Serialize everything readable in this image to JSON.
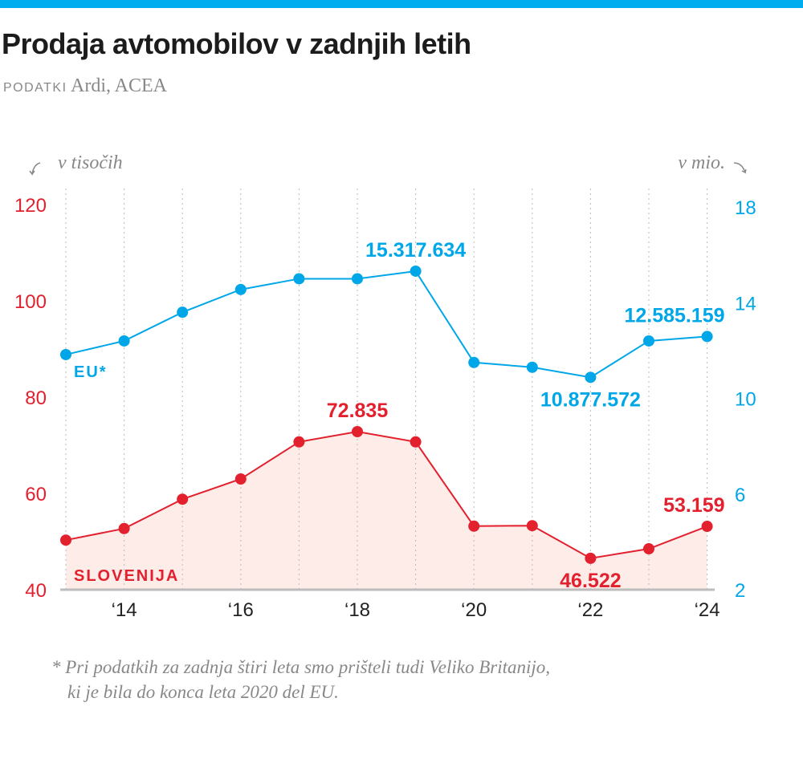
{
  "title": "Prodaja avtomobilov v zadnjih letih",
  "source": {
    "label": "PODATKI",
    "value": "Ardi, ACEA"
  },
  "footnote": {
    "line1": "* Pri podatkih za zadnja štiri leta smo prišteli tudi Veliko Britanijo,",
    "line2": "ki je bila do konca leta 2020 del EU."
  },
  "colors": {
    "accent": "#00adee",
    "slovenia": "#e3202e",
    "eu": "#00a7e8",
    "area": "#fdece8"
  },
  "chart_data": {
    "type": "line",
    "title": "Prodaja avtomobilov v zadnjih letih",
    "x": [
      2013,
      2014,
      2015,
      2016,
      2017,
      2018,
      2019,
      2020,
      2021,
      2022,
      2023,
      2024
    ],
    "xtick_labels": [
      "‘14",
      "‘16",
      "‘18",
      "‘20",
      "‘22",
      "‘24"
    ],
    "xtick_values": [
      2014,
      2016,
      2018,
      2020,
      2022,
      2024
    ],
    "y_left": {
      "label": "v tisočih",
      "range": [
        40,
        120
      ],
      "ticks": [
        "40",
        "60",
        "80",
        "100",
        "120"
      ]
    },
    "y_right": {
      "label": "v mio.",
      "range": [
        2,
        18
      ],
      "ticks": [
        "2",
        "6",
        "10",
        "14",
        "18"
      ]
    },
    "grid": "vertical dotted",
    "series": [
      {
        "name": "SLOVENIJA",
        "axis": "left",
        "filled": true,
        "values": [
          50.3,
          52.7,
          58.8,
          63.0,
          70.7,
          72.835,
          70.7,
          53.2,
          53.3,
          46.522,
          48.5,
          53.159
        ],
        "labels": [
          {
            "year": 2018,
            "text": "72.835",
            "pos": "above"
          },
          {
            "year": 2022,
            "text": "46.522",
            "pos": "below"
          },
          {
            "year": 2024,
            "text": "53.159",
            "pos": "above"
          }
        ]
      },
      {
        "name": "EU*",
        "axis": "right",
        "filled": false,
        "values": [
          11.83,
          12.4,
          13.6,
          14.55,
          15.0,
          15.0,
          15.317634,
          11.5,
          11.3,
          10.877572,
          12.4,
          12.585159
        ],
        "labels": [
          {
            "year": 2019,
            "text": "15.317.634",
            "pos": "above"
          },
          {
            "year": 2022,
            "text": "10.877.572",
            "pos": "below"
          },
          {
            "year": 2024,
            "text": "12.585.159",
            "pos": "above"
          }
        ]
      }
    ]
  }
}
